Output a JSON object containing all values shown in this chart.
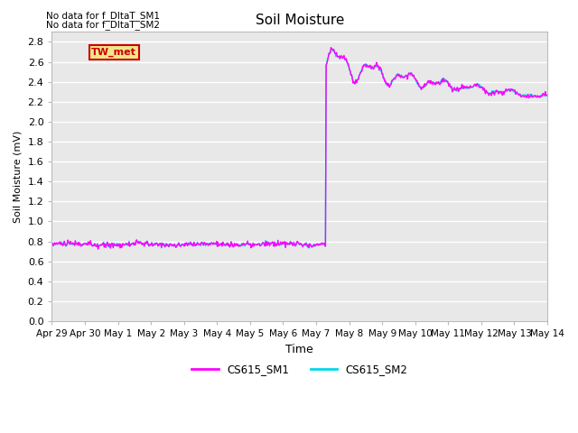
{
  "title": "Soil Moisture",
  "xlabel": "Time",
  "ylabel": "Soil Moisture (mV)",
  "yticks": [
    0.0,
    0.2,
    0.4,
    0.6,
    0.8,
    1.0,
    1.2,
    1.4,
    1.6,
    1.8,
    2.0,
    2.2,
    2.4,
    2.6,
    2.8
  ],
  "bg_color": "#e8e8e8",
  "fig_color": "#ffffff",
  "grid_color": "#ffffff",
  "no_data_text_1": "No data for f_DltaT_SM1",
  "no_data_text_2": "No data for f_DltaT_SM2",
  "tw_met_label": "TW_met",
  "tw_met_color": "#cc0000",
  "tw_met_bg": "#f0e68c",
  "legend_labels": [
    "CS615_SM1",
    "CS615_SM2"
  ],
  "cs615_sm1_color": "#ff00ff",
  "cs615_sm2_color": "#00d8e8",
  "line_width": 1.0,
  "x_tick_labels": [
    "Apr 29",
    "Apr 30",
    "May 1",
    "May 2",
    "May 3",
    "May 4",
    "May 5",
    "May 6",
    "May 7",
    "May 8",
    "May 9",
    "May 10",
    "May 11",
    "May 12",
    "May 13",
    "May 14"
  ],
  "x_tick_positions": [
    0,
    1,
    2,
    3,
    4,
    5,
    6,
    7,
    8,
    9,
    10,
    11,
    12,
    13,
    14,
    15
  ]
}
